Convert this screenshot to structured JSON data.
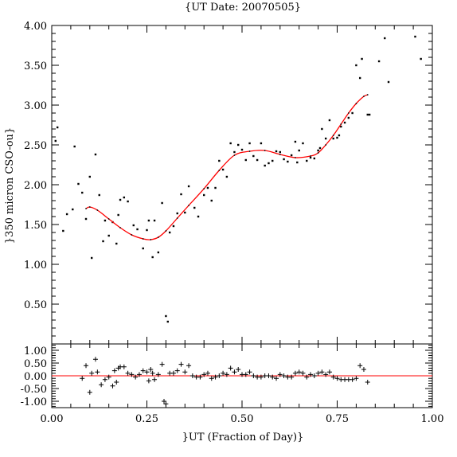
{
  "chart_data": [
    {
      "type": "scatter",
      "title": "{UT Date: 20070505}",
      "xlabel": "",
      "ylabel": "}350 micron CSO-ou}",
      "xlim": [
        0,
        1
      ],
      "ylim": [
        0,
        4
      ],
      "yticks": [
        "0.50",
        "1.00",
        "1.50",
        "2.00",
        "2.50",
        "3.00",
        "3.50",
        "4.00"
      ],
      "grid": false,
      "colors": {
        "points": "#000000",
        "fit": "#ff0000"
      },
      "series": [
        {
          "kind": "points",
          "x": [
            0.01,
            0.015,
            0.03,
            0.04,
            0.055,
            0.06,
            0.07,
            0.08,
            0.09,
            0.1,
            0.105,
            0.115,
            0.125,
            0.135,
            0.14,
            0.15,
            0.16,
            0.17,
            0.175,
            0.18,
            0.19,
            0.2,
            0.215,
            0.225,
            0.24,
            0.25,
            0.255,
            0.265,
            0.27,
            0.28,
            0.29,
            0.3,
            0.305,
            0.31,
            0.32,
            0.33,
            0.34,
            0.35,
            0.36,
            0.375,
            0.385,
            0.4,
            0.41,
            0.42,
            0.43,
            0.44,
            0.45,
            0.46,
            0.47,
            0.48,
            0.49,
            0.5,
            0.51,
            0.52,
            0.53,
            0.54,
            0.55,
            0.56,
            0.57,
            0.58,
            0.59,
            0.6,
            0.61,
            0.62,
            0.63,
            0.64,
            0.645,
            0.65,
            0.66,
            0.67,
            0.68,
            0.69,
            0.7,
            0.705,
            0.71,
            0.72,
            0.73,
            0.74,
            0.75,
            0.755,
            0.76,
            0.77,
            0.78,
            0.79,
            0.8,
            0.81,
            0.815,
            0.83,
            0.835,
            0.86,
            0.875,
            0.885,
            0.955,
            0.97
          ],
          "y": [
            2.55,
            2.72,
            1.42,
            1.63,
            1.69,
            2.48,
            2.01,
            1.9,
            1.57,
            2.1,
            1.08,
            2.38,
            1.87,
            1.29,
            1.55,
            1.36,
            1.53,
            1.26,
            1.62,
            1.81,
            1.84,
            1.79,
            1.49,
            1.44,
            1.2,
            1.43,
            1.55,
            1.09,
            1.55,
            1.15,
            1.77,
            0.35,
            0.28,
            1.4,
            1.48,
            1.64,
            1.88,
            1.65,
            1.98,
            1.71,
            1.6,
            1.87,
            1.96,
            1.8,
            1.96,
            2.3,
            2.19,
            2.1,
            2.52,
            2.41,
            2.5,
            2.44,
            2.31,
            2.52,
            2.36,
            2.31,
            2.52,
            2.24,
            2.27,
            2.3,
            2.42,
            2.41,
            2.32,
            2.29,
            2.37,
            2.54,
            2.28,
            2.43,
            2.52,
            2.3,
            2.34,
            2.33,
            2.43,
            2.46,
            2.7,
            2.58,
            2.81,
            2.58,
            2.59,
            2.62,
            2.73,
            2.78,
            2.84,
            2.9,
            3.5,
            3.34,
            3.58,
            2.88,
            2.88,
            3.55,
            3.84,
            3.29,
            3.86,
            3.58
          ]
        },
        {
          "kind": "fit",
          "x": [
            0.09,
            0.1,
            0.12,
            0.15,
            0.18,
            0.21,
            0.24,
            0.26,
            0.28,
            0.3,
            0.33,
            0.36,
            0.4,
            0.44,
            0.48,
            0.52,
            0.56,
            0.6,
            0.64,
            0.68,
            0.7,
            0.72,
            0.74,
            0.76,
            0.78,
            0.8,
            0.82,
            0.83
          ],
          "y": [
            1.7,
            1.72,
            1.68,
            1.57,
            1.46,
            1.37,
            1.32,
            1.31,
            1.34,
            1.42,
            1.58,
            1.74,
            1.95,
            2.18,
            2.37,
            2.42,
            2.43,
            2.38,
            2.34,
            2.36,
            2.4,
            2.5,
            2.62,
            2.76,
            2.9,
            3.02,
            3.11,
            3.13
          ]
        }
      ]
    },
    {
      "type": "scatter",
      "title": "",
      "xlabel": "}UT (Fraction of Day)}",
      "ylabel": "",
      "xlim": [
        0,
        1
      ],
      "ylim": [
        -1.25,
        1.25
      ],
      "xticks": [
        "0.00",
        "0.25",
        "0.50",
        "0.75",
        "1.00"
      ],
      "yticks": [
        "-1.00",
        "-0.50",
        "0.00",
        "0.50",
        "1.00"
      ],
      "grid": false,
      "zero_line_color": "#ff0000",
      "series": [
        {
          "kind": "residual",
          "x": [
            0.08,
            0.09,
            0.1,
            0.105,
            0.115,
            0.12,
            0.13,
            0.14,
            0.15,
            0.16,
            0.165,
            0.17,
            0.175,
            0.18,
            0.19,
            0.2,
            0.21,
            0.22,
            0.23,
            0.24,
            0.25,
            0.255,
            0.26,
            0.265,
            0.27,
            0.28,
            0.29,
            0.295,
            0.3,
            0.31,
            0.32,
            0.33,
            0.34,
            0.35,
            0.36,
            0.37,
            0.38,
            0.39,
            0.4,
            0.41,
            0.42,
            0.43,
            0.44,
            0.45,
            0.46,
            0.47,
            0.48,
            0.49,
            0.5,
            0.51,
            0.52,
            0.53,
            0.54,
            0.55,
            0.56,
            0.57,
            0.58,
            0.59,
            0.6,
            0.61,
            0.62,
            0.63,
            0.64,
            0.65,
            0.66,
            0.67,
            0.68,
            0.69,
            0.7,
            0.71,
            0.72,
            0.73,
            0.74,
            0.75,
            0.76,
            0.77,
            0.78,
            0.79,
            0.8,
            0.81,
            0.82,
            0.83
          ],
          "y": [
            -0.1,
            0.4,
            -0.65,
            0.1,
            0.65,
            0.15,
            -0.35,
            -0.15,
            -0.05,
            -0.4,
            0.2,
            -0.25,
            0.3,
            0.35,
            0.35,
            0.1,
            0.05,
            -0.05,
            0.05,
            0.2,
            0.15,
            -0.2,
            0.25,
            0.1,
            -0.15,
            0.05,
            0.45,
            -1.0,
            -1.1,
            0.1,
            0.1,
            0.2,
            0.45,
            0.15,
            0.4,
            0.0,
            -0.05,
            -0.05,
            0.05,
            0.1,
            -0.1,
            -0.05,
            0.0,
            0.1,
            0.05,
            0.3,
            0.15,
            0.25,
            0.05,
            0.05,
            0.15,
            0.0,
            -0.05,
            -0.05,
            0.0,
            0.0,
            -0.05,
            -0.1,
            0.05,
            0.0,
            -0.05,
            -0.05,
            0.1,
            0.15,
            0.1,
            -0.05,
            0.05,
            0.0,
            0.1,
            0.15,
            0.05,
            0.15,
            -0.05,
            -0.1,
            -0.15,
            -0.15,
            -0.15,
            -0.15,
            -0.1,
            0.4,
            0.25,
            -0.25
          ]
        }
      ]
    }
  ]
}
